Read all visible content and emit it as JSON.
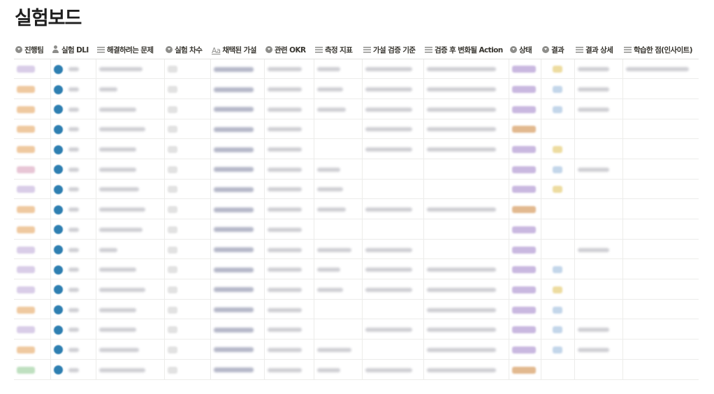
{
  "page": {
    "title": "실험보드"
  },
  "columns": [
    {
      "label": "진행팀",
      "icon": "select-icon"
    },
    {
      "label": "실험 DLI",
      "icon": "person-icon"
    },
    {
      "label": "해결하려는 문제",
      "icon": "text-icon"
    },
    {
      "label": "실험 차수",
      "icon": "select-icon"
    },
    {
      "label": "채택된 가설",
      "icon": "aa-icon",
      "icon_text": "Aa"
    },
    {
      "label": "관련 OKR",
      "icon": "select-icon"
    },
    {
      "label": "측정 지표",
      "icon": "text-icon"
    },
    {
      "label": "가설 검증 기준",
      "icon": "text-icon"
    },
    {
      "label": "검증 후 변화될 Action",
      "icon": "text-icon"
    },
    {
      "label": "상태",
      "icon": "select-icon"
    },
    {
      "label": "결과",
      "icon": "select-icon"
    },
    {
      "label": "결과 상세",
      "icon": "text-icon"
    },
    {
      "label": "학습한 점(인사이트)",
      "icon": "text-icon"
    }
  ],
  "colors": {
    "team_purple": "#d9cde8",
    "team_orange": "#efc9a0",
    "team_pink": "#e8c6d6",
    "team_green": "#bfe0c0",
    "status_purple": "#c9b8e0",
    "status_orange": "#e2b98f",
    "result_yellow": "#eddca0",
    "result_blue": "#c3d6ea"
  },
  "rows": [
    {
      "team": "team_purple",
      "text": [
        1,
        1,
        1,
        1,
        1,
        1,
        1,
        1
      ],
      "status": "status_purple",
      "result": "result_yellow",
      "detail": true,
      "insight": true
    },
    {
      "team": "team_orange",
      "text": [
        1,
        1,
        1,
        1,
        1,
        1,
        1,
        1
      ],
      "status": "status_purple",
      "result": "result_blue",
      "detail": true,
      "insight": false
    },
    {
      "team": "team_orange",
      "text": [
        1,
        1,
        1,
        1,
        1,
        1,
        1,
        1
      ],
      "status": "status_purple",
      "result": "result_blue",
      "detail": true,
      "insight": false
    },
    {
      "team": "team_orange",
      "text": [
        1,
        1,
        1,
        1,
        0,
        1,
        1,
        1
      ],
      "status": "status_orange",
      "result": "",
      "detail": false,
      "insight": false
    },
    {
      "team": "team_orange",
      "text": [
        1,
        1,
        1,
        1,
        0,
        1,
        1,
        1
      ],
      "status": "status_purple",
      "result": "result_yellow",
      "detail": false,
      "insight": false
    },
    {
      "team": "team_pink",
      "text": [
        1,
        1,
        1,
        1,
        1,
        1,
        0,
        0
      ],
      "status": "status_purple",
      "result": "result_blue",
      "detail": true,
      "insight": false
    },
    {
      "team": "team_purple",
      "text": [
        1,
        1,
        1,
        1,
        1,
        1,
        0,
        0
      ],
      "status": "status_purple",
      "result": "result_yellow",
      "detail": false,
      "insight": false
    },
    {
      "team": "team_orange",
      "text": [
        1,
        1,
        1,
        1,
        1,
        1,
        1,
        1
      ],
      "status": "status_orange",
      "result": "",
      "detail": false,
      "insight": false
    },
    {
      "team": "team_orange",
      "text": [
        1,
        1,
        1,
        1,
        0,
        1,
        0,
        0
      ],
      "status": "status_purple",
      "result": "",
      "detail": false,
      "insight": false
    },
    {
      "team": "team_purple",
      "text": [
        1,
        1,
        1,
        1,
        1,
        1,
        1,
        0
      ],
      "status": "status_purple",
      "result": "",
      "detail": true,
      "insight": false
    },
    {
      "team": "team_purple",
      "text": [
        1,
        1,
        1,
        1,
        1,
        1,
        1,
        1
      ],
      "status": "status_purple",
      "result": "result_blue",
      "detail": false,
      "insight": false
    },
    {
      "team": "team_purple",
      "text": [
        1,
        1,
        1,
        1,
        1,
        1,
        1,
        1
      ],
      "status": "status_purple",
      "result": "result_yellow",
      "detail": false,
      "insight": false
    },
    {
      "team": "team_orange",
      "text": [
        1,
        1,
        1,
        1,
        0,
        1,
        0,
        1
      ],
      "status": "status_purple",
      "result": "result_blue",
      "detail": false,
      "insight": false
    },
    {
      "team": "team_purple",
      "text": [
        1,
        1,
        1,
        1,
        0,
        1,
        1,
        1
      ],
      "status": "status_purple",
      "result": "result_blue",
      "detail": true,
      "insight": false
    },
    {
      "team": "team_orange",
      "text": [
        1,
        1,
        1,
        1,
        1,
        1,
        0,
        1
      ],
      "status": "status_purple",
      "result": "result_blue",
      "detail": true,
      "insight": false
    },
    {
      "team": "team_green",
      "text": [
        1,
        1,
        1,
        1,
        1,
        1,
        1,
        1
      ],
      "status": "status_orange",
      "result": "",
      "detail": false,
      "insight": false
    }
  ]
}
